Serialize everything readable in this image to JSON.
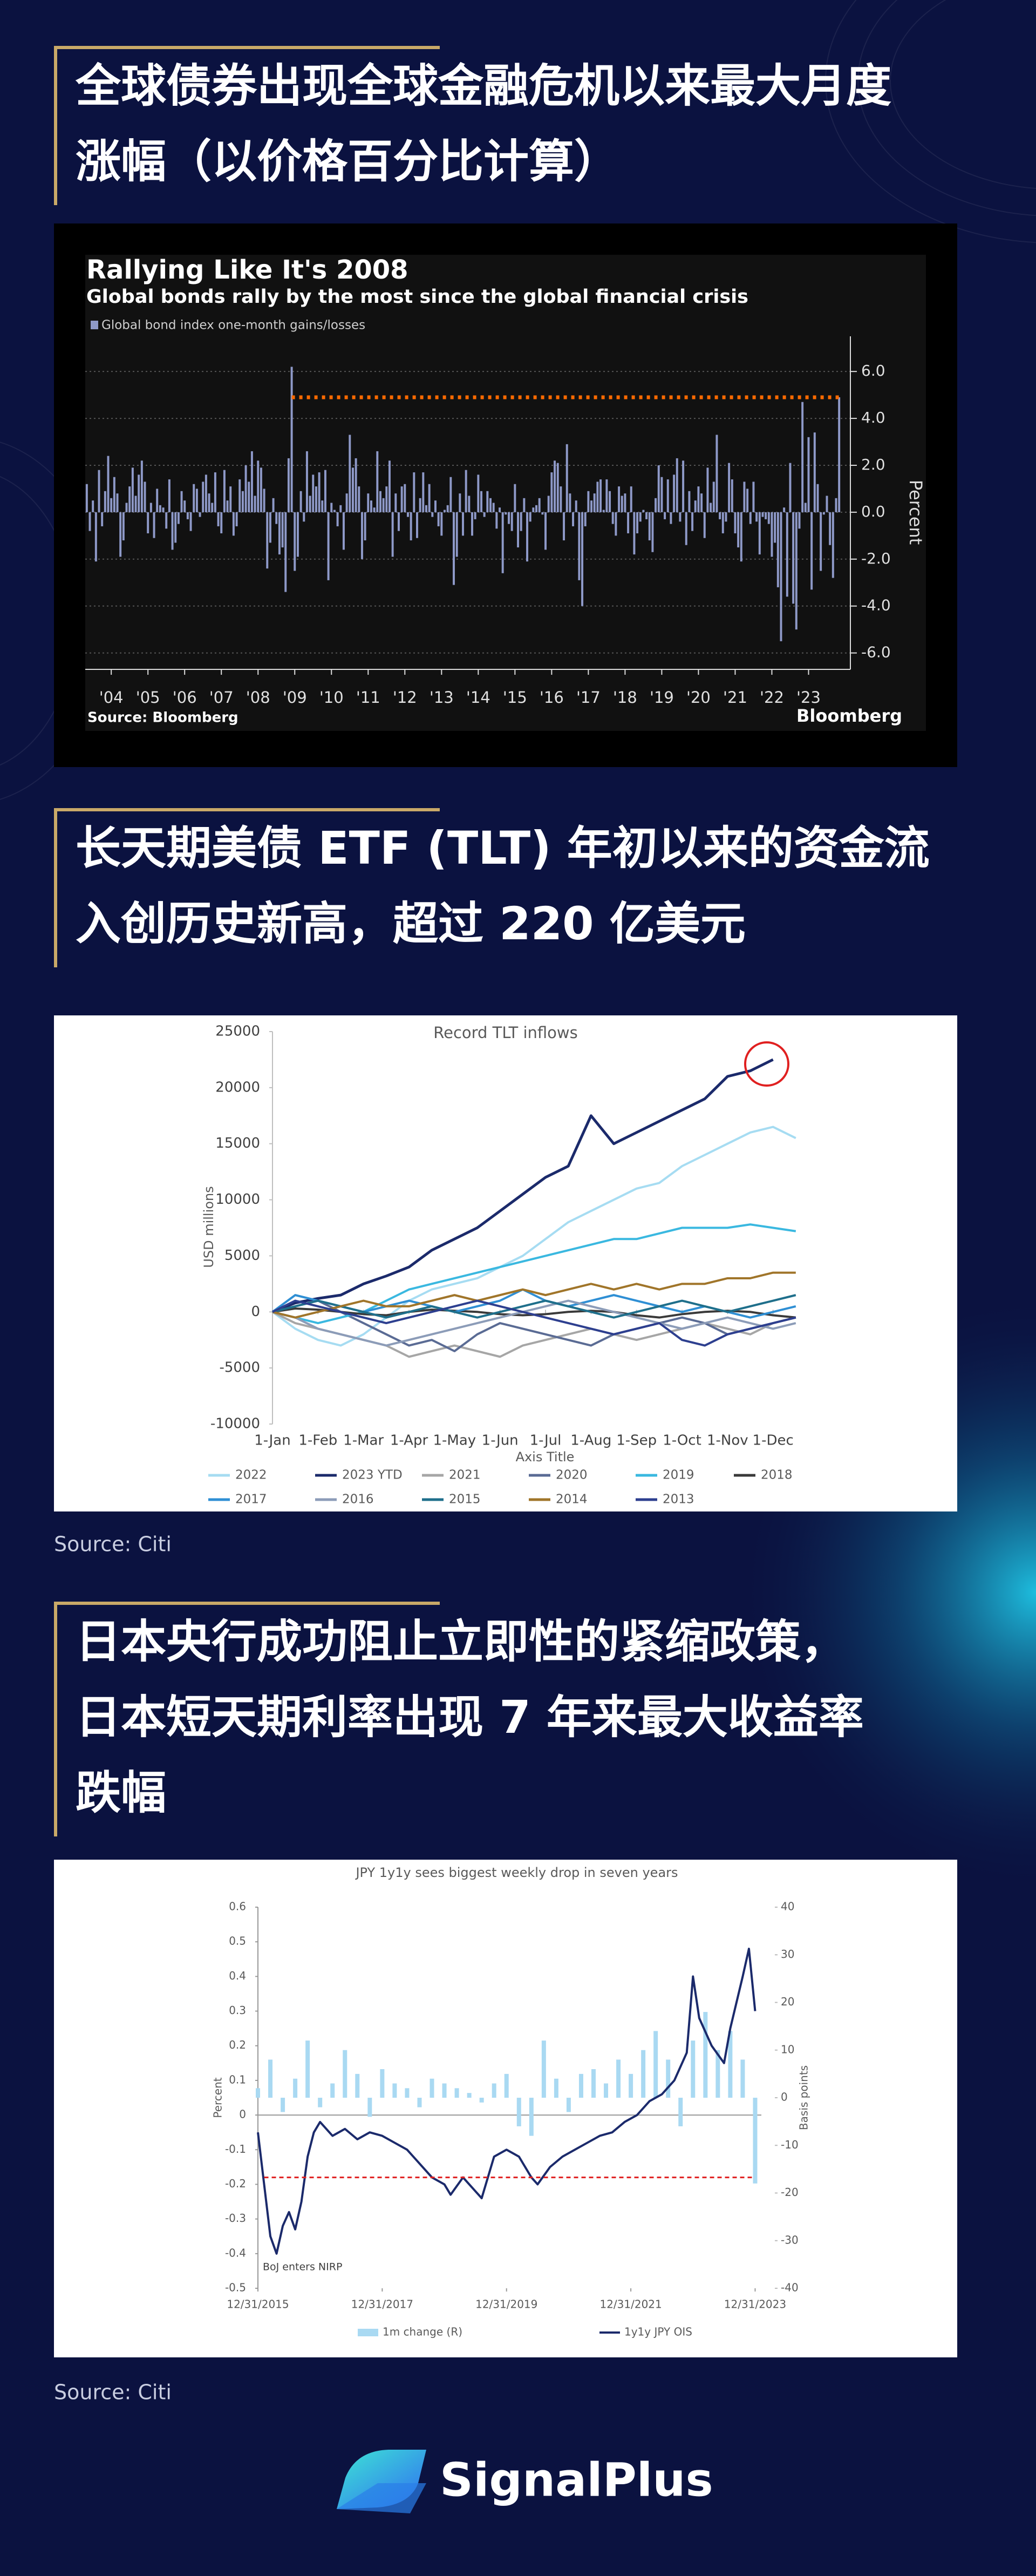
{
  "sections": [
    {
      "heading": [
        "全球债券出现全球金融危机以来最大月度",
        "涨幅（以价格百分比计算）"
      ]
    },
    {
      "heading": [
        "长天期美债 ETF (TLT) 年初以来的资金流",
        "入创历史新高，超过 220 亿美元"
      ]
    },
    {
      "heading": [
        "日本央行成功阻止立即性的紧缩政策，",
        "日本短天期利率出现 7 年来最大收益率",
        "跌幅"
      ]
    }
  ],
  "chart_data": [
    {
      "type": "bar",
      "title": "Rallying Like It's 2008",
      "subtitle": "Global bonds rally by the most since the global financial crisis",
      "ylabel": "Percent",
      "source": "Source: Bloomberg",
      "brand": "Bloomberg",
      "series": [
        {
          "name": "Global bond index one-month gains/losses",
          "color": "#8e99c8",
          "values": [
            1.2,
            -0.8,
            0.5,
            -2.1,
            1.8,
            -0.6,
            0.9,
            2.4,
            0.6,
            1.5,
            0.8,
            -1.9,
            -1.2,
            0.4,
            1.1,
            1.9,
            0.7,
            1.6,
            2.2,
            1.3,
            -0.9,
            0.4,
            -1.1,
            1.0,
            0.3,
            0.2,
            -0.7,
            1.4,
            -1.6,
            -1.3,
            -0.5,
            0.9,
            0.5,
            -0.3,
            -0.8,
            1.2,
            1.0,
            -0.2,
            1.3,
            1.6,
            0.8,
            0.4,
            1.7,
            -0.6,
            -0.9,
            1.8,
            0.5,
            1.1,
            -1.0,
            -0.6,
            1.4,
            0.9,
            2.0,
            1.3,
            2.6,
            0.7,
            2.2,
            1.9,
            1.0,
            -2.4,
            -1.3,
            0.6,
            -0.5,
            -1.8,
            -1.5,
            -3.4,
            2.3,
            6.2,
            -2.5,
            -1.9,
            0.9,
            -0.4,
            2.6,
            0.7,
            1.6,
            1.1,
            1.7,
            0.5,
            1.8,
            -2.9,
            0.4,
            0.1,
            -0.6,
            0.3,
            -1.6,
            0.8,
            3.3,
            1.9,
            2.3,
            1.1,
            -2.0,
            -1.2,
            0.8,
            0.5,
            0.2,
            2.6,
            0.9,
            0.6,
            1.1,
            2.2,
            -1.9,
            0.8,
            -0.8,
            1.1,
            1.2,
            -0.2,
            -1.2,
            1.7,
            -1.1,
            0.6,
            1.7,
            0.3,
            1.2,
            -0.2,
            0.5,
            -0.6,
            -1.0,
            0.1,
            0.3,
            1.5,
            -3.1,
            -1.9,
            0.8,
            -1.0,
            1.8,
            0.7,
            -1.0,
            -0.3,
            1.6,
            0.9,
            -0.2,
            0.9,
            0.6,
            0.4,
            -0.7,
            0.2,
            -2.6,
            -0.1,
            -0.5,
            -0.8,
            1.2,
            -1.5,
            -0.8,
            0.6,
            -2.1,
            -0.4,
            0.2,
            0.3,
            0.6,
            -0.1,
            -1.6,
            0.7,
            1.7,
            2.2,
            2.1,
            1.1,
            -1.2,
            2.9,
            0.8,
            -0.6,
            0.5,
            -2.9,
            -4.0,
            -0.6,
            0.9,
            0.5,
            0.8,
            1.3,
            1.4,
            0.1,
            1.4,
            0.9,
            -0.5,
            -1.0,
            1.1,
            0.7,
            0.8,
            -0.9,
            1.1,
            -1.8,
            -0.9,
            -0.4,
            0.1,
            -0.3,
            -1.2,
            -1.7,
            0.6,
            2.0,
            1.5,
            -0.3,
            1.4,
            -0.5,
            1.6,
            2.3,
            -0.4,
            2.2,
            -1.4,
            0.9,
            -0.8,
            0.5,
            1.1,
            0.8,
            -1.1,
            1.9,
            0.4,
            1.3,
            3.3,
            -0.3,
            -0.9,
            -0.4,
            2.1,
            1.4,
            -0.9,
            -1.5,
            -2.1,
            1.3,
            1.0,
            -0.5,
            1.3,
            -0.4,
            -1.8,
            -0.2,
            -0.3,
            -0.5,
            -1.9,
            -1.3,
            -3.2,
            -5.5,
            0.2,
            -3.6,
            2.1,
            -3.9,
            -5.0,
            -0.7,
            4.7,
            0.4,
            3.2,
            -3.3,
            3.4,
            1.2,
            -2.5,
            -0.1,
            0.7,
            -1.4,
            -2.8,
            0.6,
            4.9
          ]
        }
      ],
      "ylim": [
        -6.7,
        7.5
      ],
      "yticks": [
        {
          "value": 6,
          "label": "6.0"
        },
        {
          "value": 4,
          "label": "4.0"
        },
        {
          "value": 2,
          "label": "2.0"
        },
        {
          "value": 0,
          "label": "0.0"
        },
        {
          "value": -2,
          "label": "-2.0"
        },
        {
          "value": -4,
          "label": "-4.0"
        },
        {
          "value": -6,
          "label": "-6.0"
        }
      ],
      "xticks": [
        {
          "value": 8,
          "label": "'04"
        },
        {
          "value": 20,
          "label": "'05"
        },
        {
          "value": 32,
          "label": "'06"
        },
        {
          "value": 44,
          "label": "'07"
        },
        {
          "value": 56,
          "label": "'08"
        },
        {
          "value": 68,
          "label": "'09"
        },
        {
          "value": 80,
          "label": "'10"
        },
        {
          "value": 92,
          "label": "'11"
        },
        {
          "value": 104,
          "label": "'12"
        },
        {
          "value": 116,
          "label": "'13"
        },
        {
          "value": 128,
          "label": "'14"
        },
        {
          "value": 140,
          "label": "'15"
        },
        {
          "value": 152,
          "label": "'16"
        },
        {
          "value": 164,
          "label": "'17"
        },
        {
          "value": 176,
          "label": "'18"
        },
        {
          "value": 188,
          "label": "'19"
        },
        {
          "value": 200,
          "label": "'20"
        },
        {
          "value": 212,
          "label": "'21"
        },
        {
          "value": 224,
          "label": "'22"
        },
        {
          "value": 236,
          "label": "'23"
        }
      ],
      "ref_line": {
        "value": 4.9,
        "color": "#ff6a00"
      },
      "grid": true
    },
    {
      "type": "line",
      "title": "Record TLT inflows",
      "ylabel": "USD millions",
      "xlabel": "Axis Title",
      "source": "Source: Citi",
      "x": [
        0,
        0.5,
        1,
        1.5,
        2,
        2.5,
        3,
        3.5,
        4,
        4.5,
        5,
        5.5,
        6,
        6.5,
        7,
        7.5,
        8,
        8.5,
        9,
        9.5,
        10,
        10.5,
        11,
        11.5
      ],
      "xlim": [
        0,
        12
      ],
      "xticks": [
        {
          "value": 0,
          "label": "1-Jan"
        },
        {
          "value": 1,
          "label": "1-Feb"
        },
        {
          "value": 2,
          "label": "1-Mar"
        },
        {
          "value": 3,
          "label": "1-Apr"
        },
        {
          "value": 4,
          "label": "1-May"
        },
        {
          "value": 5,
          "label": "1-Jun"
        },
        {
          "value": 6,
          "label": "1-Jul"
        },
        {
          "value": 7,
          "label": "1-Aug"
        },
        {
          "value": 8,
          "label": "1-Sep"
        },
        {
          "value": 9,
          "label": "1-Oct"
        },
        {
          "value": 10,
          "label": "1-Nov"
        },
        {
          "value": 11,
          "label": "1-Dec"
        }
      ],
      "ylim": [
        -10000,
        25000
      ],
      "yticks": [
        25000,
        20000,
        15000,
        10000,
        5000,
        0,
        -5000,
        -10000
      ],
      "grid": false,
      "series": [
        {
          "name": "2022",
          "color": "#a6dcf2",
          "values": [
            0,
            -1500,
            -2500,
            -3000,
            -2000,
            -500,
            1000,
            2000,
            2500,
            3000,
            4000,
            5000,
            6500,
            8000,
            9000,
            10000,
            11000,
            11500,
            13000,
            14000,
            15000,
            16000,
            16500,
            15500
          ]
        },
        {
          "name": "2023 YTD",
          "color": "#1b2a6b",
          "values": [
            0,
            800,
            1200,
            1500,
            2500,
            3200,
            4000,
            5500,
            6500,
            7500,
            9000,
            10500,
            12000,
            13000,
            17500,
            15000,
            16000,
            17000,
            18000,
            19000,
            21000,
            21500,
            22500,
            null
          ]
        },
        {
          "name": "2021",
          "color": "#a6a6a6",
          "values": [
            0,
            -1000,
            -1500,
            -2000,
            -2500,
            -3000,
            -4000,
            -3500,
            -3000,
            -3500,
            -4000,
            -3000,
            -2500,
            -2000,
            -1500,
            -2000,
            -2500,
            -2000,
            -1500,
            -1000,
            -1500,
            -2000,
            -1000,
            -500
          ]
        },
        {
          "name": "2020",
          "color": "#5a6b94",
          "values": [
            0,
            500,
            1000,
            0,
            -1000,
            -2000,
            -3000,
            -2500,
            -3500,
            -2000,
            -1000,
            -1500,
            -2000,
            -2500,
            -3000,
            -2000,
            -1500,
            -1000,
            -500,
            -1000,
            -2000,
            -1500,
            -1000,
            -500
          ]
        },
        {
          "name": "2019",
          "color": "#3ab8e0",
          "values": [
            0,
            -500,
            -1000,
            -500,
            0,
            1000,
            2000,
            2500,
            3000,
            3500,
            4000,
            4500,
            5000,
            5500,
            6000,
            6500,
            6500,
            7000,
            7500,
            7500,
            7500,
            7800,
            7500,
            7200
          ]
        },
        {
          "name": "2018",
          "color": "#3a3a3a",
          "values": [
            0,
            300,
            200,
            0,
            -200,
            -300,
            0,
            200,
            100,
            0,
            -200,
            -300,
            -200,
            0,
            100,
            0,
            -300,
            -500,
            -200,
            0,
            100,
            0,
            -300,
            -500
          ]
        },
        {
          "name": "2017",
          "color": "#2f8fd4",
          "values": [
            0,
            1500,
            1000,
            500,
            0,
            500,
            1000,
            500,
            0,
            500,
            1000,
            2000,
            1000,
            500,
            1000,
            1500,
            1000,
            500,
            0,
            500,
            0,
            -500,
            0,
            500
          ]
        },
        {
          "name": "2016",
          "color": "#8c9cb8",
          "values": [
            0,
            -500,
            -1500,
            -2000,
            -2500,
            -3000,
            -2500,
            -2000,
            -1500,
            -1000,
            -500,
            0,
            500,
            1000,
            500,
            0,
            -500,
            -1000,
            -1500,
            -1000,
            -500,
            -1000,
            -1500,
            -1000
          ]
        },
        {
          "name": "2015",
          "color": "#1f6f8b",
          "values": [
            0,
            500,
            1000,
            500,
            0,
            -500,
            0,
            500,
            0,
            -500,
            0,
            500,
            1000,
            500,
            0,
            -500,
            0,
            500,
            1000,
            500,
            0,
            500,
            1000,
            1500
          ]
        },
        {
          "name": "2014",
          "color": "#a0752a",
          "values": [
            0,
            -500,
            0,
            500,
            1000,
            500,
            500,
            1000,
            1500,
            1000,
            1500,
            2000,
            1500,
            2000,
            2500,
            2000,
            2500,
            2000,
            2500,
            2500,
            3000,
            3000,
            3500,
            3500
          ]
        },
        {
          "name": "2013",
          "color": "#2d3f8f",
          "values": [
            0,
            1000,
            500,
            0,
            -500,
            -1000,
            -500,
            0,
            500,
            1000,
            500,
            0,
            -500,
            -1000,
            -1500,
            -2000,
            -1500,
            -1000,
            -2500,
            -3000,
            -2000,
            -1500,
            -1000,
            -500
          ]
        }
      ]
    },
    {
      "type": "bar-line",
      "title": "JPY 1y1y sees biggest weekly drop in seven years",
      "ylabel": "Percent",
      "y2label": "Basis points",
      "annotation": "BoJ enters NIRP",
      "source": "Source: Citi",
      "xlim": [
        2016,
        2024.1
      ],
      "xticks": [
        {
          "value": 2016,
          "label": "12/31/2015"
        },
        {
          "value": 2018,
          "label": "12/31/2017"
        },
        {
          "value": 2020,
          "label": "12/31/2019"
        },
        {
          "value": 2022,
          "label": "12/31/2021"
        },
        {
          "value": 2024,
          "label": "12/31/2023"
        }
      ],
      "ylim": [
        -0.5,
        0.6
      ],
      "yticks": [
        0.6,
        0.5,
        0.4,
        0.3,
        0.2,
        0.1,
        0,
        -0.1,
        -0.2,
        -0.3,
        -0.4,
        -0.5
      ],
      "y2lim": [
        -40,
        40
      ],
      "y2ticks": [
        40,
        30,
        20,
        10,
        0,
        -10,
        -20,
        -30,
        -40
      ],
      "ref_line": {
        "value": -0.18,
        "color": "#e02020"
      },
      "series": [
        {
          "name": "1m change (R)",
          "type": "bar",
          "axis": "y2",
          "color": "#a9d9f2",
          "x": [
            2016,
            2016.2,
            2016.4,
            2016.6,
            2016.8,
            2017,
            2017.2,
            2017.4,
            2017.6,
            2017.8,
            2018,
            2018.2,
            2018.4,
            2018.6,
            2018.8,
            2019,
            2019.2,
            2019.4,
            2019.6,
            2019.8,
            2020,
            2020.2,
            2020.4,
            2020.6,
            2020.8,
            2021,
            2021.2,
            2021.4,
            2021.6,
            2021.8,
            2022,
            2022.2,
            2022.4,
            2022.6,
            2022.8,
            2023,
            2023.2,
            2023.4,
            2023.6,
            2023.8,
            2024
          ],
          "values": [
            2,
            8,
            -3,
            4,
            12,
            -2,
            3,
            10,
            5,
            -4,
            6,
            3,
            2,
            -2,
            4,
            3,
            2,
            1,
            -1,
            3,
            5,
            -6,
            -8,
            12,
            4,
            -3,
            5,
            6,
            3,
            8,
            5,
            10,
            14,
            8,
            -6,
            12,
            18,
            10,
            14,
            8,
            -18
          ]
        },
        {
          "name": "1y1y JPY OIS",
          "type": "line",
          "color": "#1b2a6b",
          "x": [
            2016.0,
            2016.1,
            2016.2,
            2016.3,
            2016.4,
            2016.5,
            2016.6,
            2016.7,
            2016.8,
            2016.9,
            2017.0,
            2017.2,
            2017.4,
            2017.6,
            2017.8,
            2018.0,
            2018.2,
            2018.4,
            2018.6,
            2018.8,
            2019.0,
            2019.1,
            2019.3,
            2019.5,
            2019.6,
            2019.8,
            2020.0,
            2020.2,
            2020.4,
            2020.5,
            2020.7,
            2020.9,
            2021.1,
            2021.3,
            2021.5,
            2021.7,
            2021.9,
            2022.1,
            2022.3,
            2022.5,
            2022.7,
            2022.9,
            2023.0,
            2023.1,
            2023.3,
            2023.5,
            2023.6,
            2023.8,
            2023.9,
            2024.0
          ],
          "values": [
            -0.05,
            -0.2,
            -0.35,
            -0.4,
            -0.32,
            -0.28,
            -0.33,
            -0.25,
            -0.12,
            -0.05,
            -0.02,
            -0.06,
            -0.04,
            -0.07,
            -0.05,
            -0.06,
            -0.08,
            -0.1,
            -0.14,
            -0.18,
            -0.2,
            -0.23,
            -0.18,
            -0.22,
            -0.24,
            -0.12,
            -0.1,
            -0.12,
            -0.18,
            -0.2,
            -0.15,
            -0.12,
            -0.1,
            -0.08,
            -0.06,
            -0.05,
            -0.02,
            0.0,
            0.04,
            0.06,
            0.1,
            0.18,
            0.4,
            0.28,
            0.2,
            0.15,
            0.25,
            0.4,
            0.48,
            0.3
          ]
        }
      ]
    }
  ],
  "logo": "SignalPlus"
}
